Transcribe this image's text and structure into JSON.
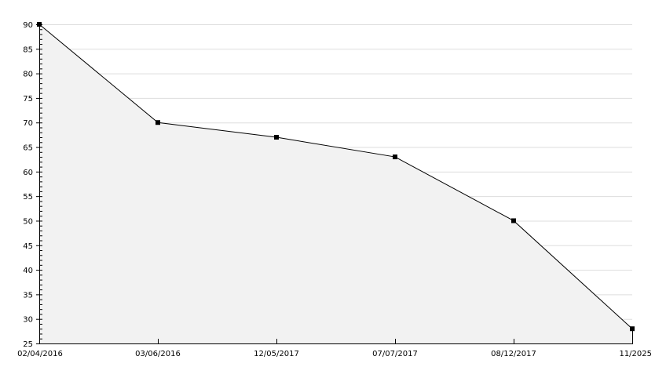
{
  "chart_data": {
    "type": "area",
    "categories": [
      "02/04/2016",
      "03/06/2016",
      "12/05/2017",
      "07/07/2017",
      "08/12/2017",
      "11/2025"
    ],
    "values": [
      90,
      70,
      67,
      63,
      50,
      28
    ],
    "title": "",
    "xlabel": "",
    "ylabel": "",
    "ylim": [
      25,
      90
    ],
    "yticks": [
      25,
      30,
      35,
      40,
      45,
      50,
      55,
      60,
      65,
      70,
      75,
      80,
      85,
      90
    ],
    "grid": "horizontal",
    "legend": "none",
    "colors": {
      "line": "#000000",
      "fill": "#f2f2f2",
      "grid": "#dddddd",
      "marker": "#000000"
    }
  }
}
